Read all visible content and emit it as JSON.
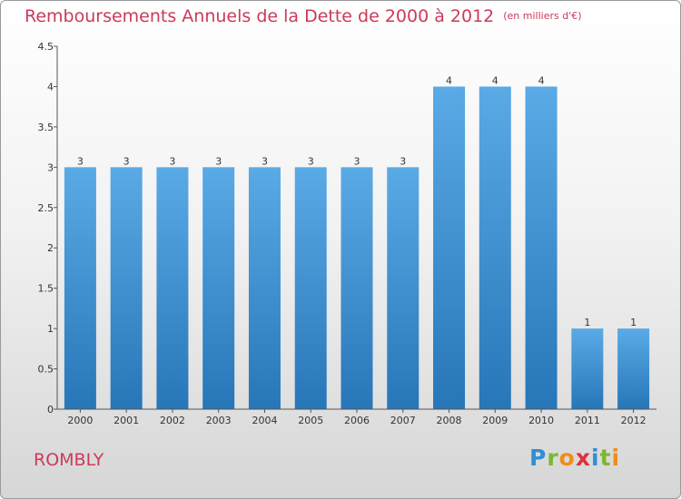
{
  "title": "Remboursements Annuels de la Dette de 2000 à 2012",
  "subtitle": "(en milliers d'€)",
  "commune": "ROMBLY",
  "logo": {
    "letters": [
      {
        "ch": "P",
        "color": "#2f8fd4"
      },
      {
        "ch": "r",
        "color": "#7cb82f"
      },
      {
        "ch": "o",
        "color": "#f28c1a"
      },
      {
        "ch": "x",
        "color": "#e0303a"
      },
      {
        "ch": "i",
        "color": "#2f8fd4"
      },
      {
        "ch": "t",
        "color": "#7cb82f"
      },
      {
        "ch": "i",
        "color": "#f28c1a"
      }
    ]
  },
  "colors": {
    "title": "#cc3a5a",
    "bar_top": "#5aaae6",
    "bar_bottom": "#2776b8",
    "axis": "#555555"
  },
  "chart_data": {
    "type": "bar",
    "title": "Remboursements Annuels de la Dette de 2000 à 2012",
    "subtitle": "(en milliers d'€)",
    "categories": [
      "2000",
      "2001",
      "2002",
      "2003",
      "2004",
      "2005",
      "2006",
      "2007",
      "2008",
      "2009",
      "2010",
      "2011",
      "2012"
    ],
    "values": [
      3,
      3,
      3,
      3,
      3,
      3,
      3,
      3,
      4,
      4,
      4,
      1,
      1
    ],
    "data_labels": [
      "3",
      "3",
      "3",
      "3",
      "3",
      "3",
      "3",
      "3",
      "4",
      "4",
      "4",
      "1",
      "1"
    ],
    "yticks": [
      "0",
      "0.5",
      "1",
      "1.5",
      "2",
      "2.5",
      "3",
      "3.5",
      "4",
      "4.5"
    ],
    "ylim": [
      0,
      4.5
    ],
    "grid": false
  }
}
